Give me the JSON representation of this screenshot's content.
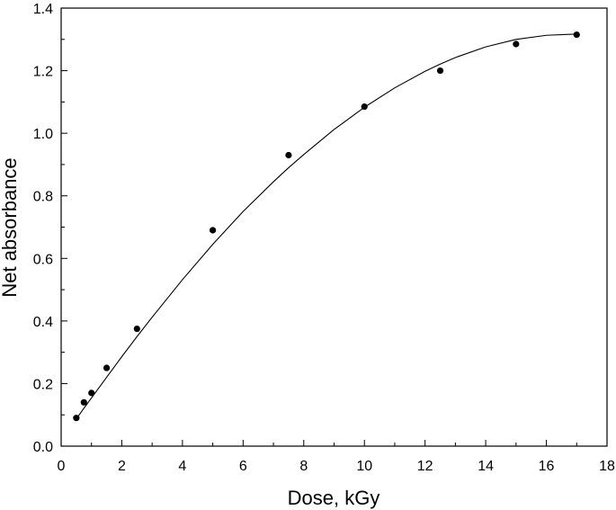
{
  "chart_data": {
    "type": "scatter",
    "title": "",
    "xlabel": "Dose, kGy",
    "ylabel": "Net absorbance",
    "xlim": [
      0,
      18
    ],
    "ylim": [
      0.0,
      1.4
    ],
    "x_ticks": [
      "0",
      "2",
      "4",
      "6",
      "8",
      "10",
      "12",
      "14",
      "16",
      "18"
    ],
    "y_ticks": [
      "0.0",
      "0.2",
      "0.4",
      "0.6",
      "0.8",
      "1.0",
      "1.2",
      "1.4"
    ],
    "grid": false,
    "legend": "none",
    "series": [
      {
        "x": [
          0.5,
          0.75,
          1.0,
          1.5,
          2.5,
          5.0,
          7.5,
          10.0,
          12.5,
          15.0,
          17.0
        ],
        "y": [
          0.09,
          0.14,
          0.17,
          0.25,
          0.375,
          0.69,
          0.93,
          1.085,
          1.2,
          1.285,
          1.315
        ]
      }
    ],
    "fit_curve": {
      "x": [
        0.5,
        0.75,
        1.0,
        1.5,
        2.0,
        2.5,
        3.0,
        4.0,
        5.0,
        6.0,
        7.0,
        7.5,
        8.0,
        9.0,
        10.0,
        11.0,
        12.0,
        12.5,
        13.0,
        14.0,
        15.0,
        16.0,
        17.0
      ],
      "y": [
        0.087,
        0.121,
        0.154,
        0.22,
        0.286,
        0.35,
        0.412,
        0.532,
        0.645,
        0.75,
        0.845,
        0.89,
        0.932,
        1.012,
        1.083,
        1.145,
        1.198,
        1.221,
        1.242,
        1.276,
        1.3,
        1.313,
        1.317
      ]
    },
    "colors": {
      "marker": "#000000",
      "line": "#000000",
      "axis": "#000000"
    }
  }
}
